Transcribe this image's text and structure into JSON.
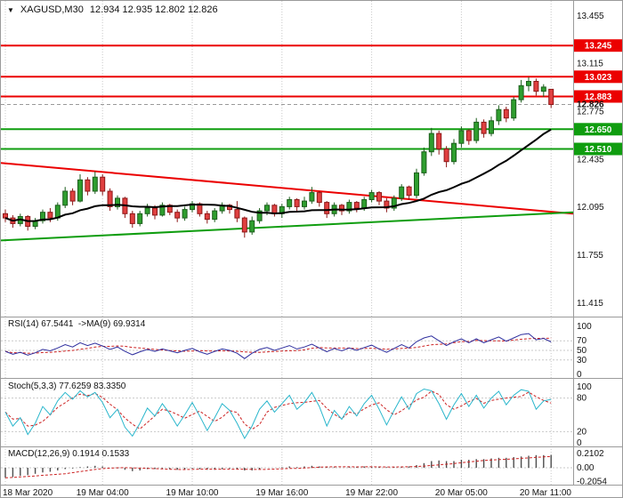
{
  "header": {
    "dropdown_icon": "▼",
    "symbol": "XAGUSD,M30",
    "ohlc": "12.934 12.935 12.802 12.826"
  },
  "colors": {
    "level_red": "#eb0000",
    "level_green": "#0f9d0f",
    "candle_up": "#2f9e2f",
    "candle_up_border": "#1c5e1c",
    "candle_dn": "#e04040",
    "candle_dn_border": "#8c1717",
    "ma": "#000000",
    "rsi": "#2e2e9e",
    "stoch": "#29b6cc",
    "signal": "#cc2222",
    "macd": "#4d4d4d",
    "grid": "#c9c9c9",
    "sep": "#9b9b9b",
    "axis_text": "#111111",
    "badge_text": "#ffffff",
    "bid_line": "#999999"
  },
  "chart_data": {
    "type": "candlestick",
    "symbol": "XAGUSD",
    "timeframe": "M30",
    "x_labels": [
      "18 Mar 2020",
      "19 Mar 04:00",
      "19 Mar 10:00",
      "19 Mar 16:00",
      "19 Mar 22:00",
      "20 Mar 05:00",
      "20 Mar 11:00"
    ],
    "x_label_indices": [
      0,
      13,
      25,
      37,
      49,
      61,
      73
    ],
    "main": {
      "y_ticks": [
        "13.455",
        "13.115",
        "12.775",
        "12.435",
        "12.095",
        "11.755",
        "11.415"
      ],
      "y_range": [
        11.319,
        13.562
      ],
      "levels": [
        {
          "price": 13.245,
          "label": "13.245",
          "color": "red"
        },
        {
          "price": 13.023,
          "label": "13.023",
          "color": "red"
        },
        {
          "price": 12.883,
          "label": "12.883",
          "color": "red"
        },
        {
          "price": 12.65,
          "label": "12.650",
          "color": "green"
        },
        {
          "price": 12.51,
          "label": "12.510",
          "color": "green"
        }
      ],
      "bid_price": 12.826,
      "bid_label": "12.826",
      "trendlines": [
        {
          "x1_frac": 0,
          "price1": 12.41,
          "x2_frac": 1,
          "price2": 12.05,
          "color": "red"
        },
        {
          "x1_frac": 0,
          "price1": 11.86,
          "x2_frac": 1,
          "price2": 12.06,
          "color": "green"
        }
      ],
      "ma_period": 21,
      "candles": [
        [
          12.05,
          12.08,
          11.99,
          12.02
        ],
        [
          12.02,
          12.04,
          11.95,
          11.98
        ],
        [
          11.98,
          12.05,
          11.96,
          12.03
        ],
        [
          12.03,
          12.04,
          11.93,
          11.96
        ],
        [
          11.96,
          12.02,
          11.94,
          12.0
        ],
        [
          12.0,
          12.08,
          11.98,
          12.06
        ],
        [
          12.06,
          12.09,
          11.99,
          12.02
        ],
        [
          12.02,
          12.13,
          12.0,
          12.11
        ],
        [
          12.11,
          12.24,
          12.09,
          12.21
        ],
        [
          12.21,
          12.23,
          12.11,
          12.14
        ],
        [
          12.14,
          12.33,
          12.13,
          12.29
        ],
        [
          12.29,
          12.31,
          12.18,
          12.21
        ],
        [
          12.21,
          12.35,
          12.19,
          12.31
        ],
        [
          12.31,
          12.33,
          12.18,
          12.21
        ],
        [
          12.21,
          12.23,
          12.07,
          12.1
        ],
        [
          12.1,
          12.18,
          12.08,
          12.16
        ],
        [
          12.16,
          12.17,
          12.02,
          12.05
        ],
        [
          12.05,
          12.07,
          11.95,
          11.98
        ],
        [
          11.98,
          12.07,
          11.96,
          12.05
        ],
        [
          12.05,
          12.12,
          12.03,
          12.09
        ],
        [
          12.09,
          12.11,
          12.01,
          12.04
        ],
        [
          12.04,
          12.13,
          12.03,
          12.11
        ],
        [
          12.11,
          12.12,
          12.04,
          12.06
        ],
        [
          12.06,
          12.08,
          11.99,
          12.02
        ],
        [
          12.02,
          12.1,
          12.0,
          12.08
        ],
        [
          12.08,
          12.14,
          12.06,
          12.12
        ],
        [
          12.12,
          12.13,
          12.03,
          12.05
        ],
        [
          12.05,
          12.07,
          11.98,
          12.01
        ],
        [
          12.01,
          12.09,
          11.99,
          12.07
        ],
        [
          12.07,
          12.13,
          12.05,
          12.11
        ],
        [
          12.11,
          12.12,
          12.05,
          12.08
        ],
        [
          12.08,
          12.14,
          11.99,
          12.02
        ],
        [
          12.02,
          12.03,
          11.88,
          11.92
        ],
        [
          11.92,
          12.03,
          11.9,
          12.0
        ],
        [
          12.0,
          12.09,
          11.98,
          12.07
        ],
        [
          12.07,
          12.13,
          12.04,
          12.11
        ],
        [
          12.11,
          12.12,
          12.03,
          12.05
        ],
        [
          12.05,
          12.12,
          12.02,
          12.1
        ],
        [
          12.1,
          12.17,
          12.08,
          12.15
        ],
        [
          12.15,
          12.16,
          12.07,
          12.1
        ],
        [
          12.1,
          12.17,
          12.08,
          12.14
        ],
        [
          12.14,
          12.24,
          12.12,
          12.2
        ],
        [
          12.2,
          12.21,
          12.1,
          12.13
        ],
        [
          12.13,
          12.14,
          12.02,
          12.05
        ],
        [
          12.05,
          12.13,
          12.03,
          12.11
        ],
        [
          12.11,
          12.12,
          12.04,
          12.07
        ],
        [
          12.07,
          12.15,
          12.05,
          12.13
        ],
        [
          12.13,
          12.14,
          12.06,
          12.09
        ],
        [
          12.09,
          12.17,
          12.07,
          12.15
        ],
        [
          12.15,
          12.22,
          12.13,
          12.2
        ],
        [
          12.2,
          12.21,
          12.11,
          12.14
        ],
        [
          12.14,
          12.16,
          12.06,
          12.09
        ],
        [
          12.09,
          12.18,
          12.07,
          12.16
        ],
        [
          12.16,
          12.26,
          12.14,
          12.24
        ],
        [
          12.24,
          12.25,
          12.15,
          12.18
        ],
        [
          12.18,
          12.37,
          12.16,
          12.34
        ],
        [
          12.34,
          12.52,
          12.32,
          12.49
        ],
        [
          12.49,
          12.66,
          12.46,
          12.62
        ],
        [
          12.62,
          12.64,
          12.47,
          12.51
        ],
        [
          12.51,
          12.53,
          12.38,
          12.42
        ],
        [
          12.42,
          12.58,
          12.4,
          12.55
        ],
        [
          12.55,
          12.67,
          12.52,
          12.64
        ],
        [
          12.64,
          12.65,
          12.54,
          12.57
        ],
        [
          12.57,
          12.73,
          12.55,
          12.7
        ],
        [
          12.7,
          12.72,
          12.59,
          12.62
        ],
        [
          12.62,
          12.74,
          12.6,
          12.71
        ],
        [
          12.71,
          12.82,
          12.68,
          12.79
        ],
        [
          12.79,
          12.81,
          12.7,
          12.73
        ],
        [
          12.73,
          12.88,
          12.71,
          12.86
        ],
        [
          12.86,
          13.0,
          12.84,
          12.96
        ],
        [
          12.96,
          13.02,
          12.92,
          12.99
        ],
        [
          12.99,
          13.01,
          12.89,
          12.92
        ],
        [
          12.92,
          12.97,
          12.88,
          12.95
        ],
        [
          12.934,
          12.935,
          12.802,
          12.826
        ]
      ]
    },
    "rsi": {
      "label": "RSI(14) 67.5441  ->MA(9) 69.9314",
      "ticks": [
        "100",
        "70",
        "50",
        "30",
        "0"
      ],
      "levels": [
        70,
        50,
        30
      ],
      "ma_period": 9,
      "values": [
        48,
        42,
        46,
        40,
        45,
        52,
        49,
        55,
        62,
        57,
        66,
        60,
        65,
        59,
        52,
        57,
        48,
        41,
        47,
        52,
        48,
        53,
        49,
        45,
        50,
        54,
        47,
        42,
        48,
        53,
        50,
        44,
        33,
        44,
        52,
        56,
        50,
        55,
        60,
        53,
        57,
        63,
        55,
        47,
        54,
        49,
        55,
        50,
        56,
        61,
        53,
        46,
        54,
        62,
        55,
        68,
        76,
        80,
        70,
        60,
        68,
        74,
        66,
        74,
        66,
        72,
        78,
        69,
        76,
        83,
        85,
        72,
        75,
        67.5441
      ]
    },
    "stoch": {
      "label": "Stoch(5,3,3) 77.6259 83.3350",
      "ticks": [
        "100",
        "80",
        "20",
        "0"
      ],
      "levels": [
        80,
        20
      ],
      "signal_period": 3,
      "values": [
        55,
        30,
        45,
        15,
        35,
        65,
        50,
        75,
        90,
        78,
        93,
        82,
        90,
        72,
        45,
        60,
        28,
        12,
        35,
        62,
        48,
        70,
        52,
        30,
        50,
        72,
        48,
        22,
        45,
        70,
        58,
        35,
        8,
        30,
        60,
        75,
        55,
        70,
        85,
        60,
        72,
        90,
        65,
        30,
        58,
        42,
        65,
        48,
        70,
        85,
        60,
        32,
        58,
        82,
        60,
        88,
        96,
        93,
        70,
        42,
        68,
        88,
        65,
        85,
        62,
        80,
        92,
        68,
        85,
        95,
        92,
        60,
        75,
        77.6259
      ]
    },
    "macd": {
      "label": "MACD(12,26,9) 0.1914 0.1533",
      "ticks": [
        "0.2102",
        "0.00",
        "-0.2054"
      ],
      "signal_period": 9,
      "values": [
        -0.15,
        -0.14,
        -0.12,
        -0.11,
        -0.09,
        -0.07,
        -0.06,
        -0.04,
        -0.02,
        -0.01,
        0.01,
        0.02,
        0.03,
        0.02,
        0.0,
        -0.01,
        -0.03,
        -0.05,
        -0.04,
        -0.02,
        -0.02,
        -0.01,
        -0.02,
        -0.03,
        -0.02,
        -0.01,
        -0.02,
        -0.03,
        -0.03,
        -0.02,
        -0.01,
        -0.02,
        -0.04,
        -0.04,
        -0.02,
        0.0,
        0.0,
        0.01,
        0.02,
        0.01,
        0.02,
        0.03,
        0.02,
        0.01,
        0.01,
        0.0,
        0.01,
        0.01,
        0.02,
        0.02,
        0.02,
        0.01,
        0.01,
        0.02,
        0.02,
        0.04,
        0.07,
        0.1,
        0.11,
        0.1,
        0.1,
        0.12,
        0.12,
        0.13,
        0.13,
        0.14,
        0.15,
        0.15,
        0.16,
        0.17,
        0.18,
        0.19,
        0.19,
        0.1914
      ]
    }
  }
}
